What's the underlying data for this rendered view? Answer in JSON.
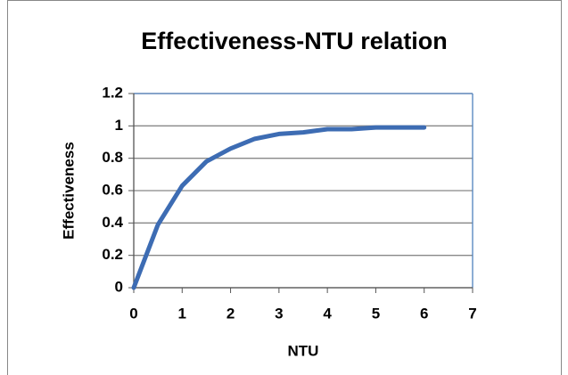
{
  "chart_data": {
    "type": "line",
    "title": "Effectiveness-NTU relation",
    "x_label": "NTU",
    "y_label": "Effectiveness",
    "x": [
      0,
      0.5,
      1,
      1.5,
      2,
      2.5,
      3,
      3.5,
      4,
      4.5,
      5,
      5.5,
      6
    ],
    "series": [
      {
        "name": "Effectiveness",
        "color": "#3d6cb3",
        "values": [
          0,
          0.39,
          0.63,
          0.78,
          0.86,
          0.92,
          0.95,
          0.96,
          0.98,
          0.98,
          0.99,
          0.99,
          0.99
        ]
      }
    ],
    "xlim": [
      0,
      7
    ],
    "xticks": [
      0,
      1,
      2,
      3,
      4,
      5,
      6,
      7
    ],
    "ylim": [
      0,
      1.2
    ],
    "yticks": [
      0,
      0.2,
      0.4,
      0.6,
      0.8,
      1,
      1.2
    ],
    "grid": true
  }
}
